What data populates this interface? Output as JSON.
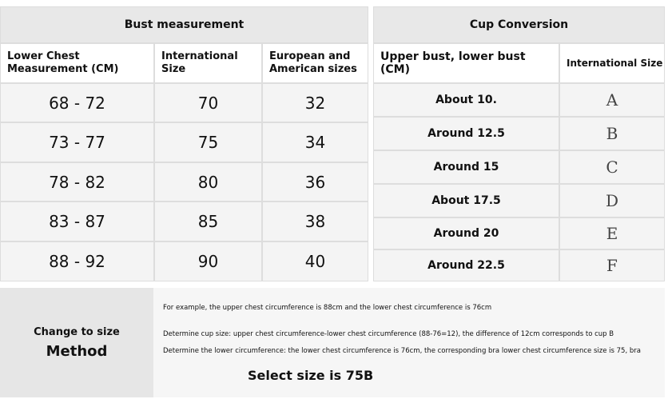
{
  "bust_table": {
    "title": "Bust measurement",
    "headers": [
      "Lower Chest Measurement (CM)",
      "International Size",
      "European and American sizes"
    ],
    "rows": [
      [
        "68 - 72",
        "70",
        "32"
      ],
      [
        "73 - 77",
        "75",
        "34"
      ],
      [
        "78 - 82",
        "80",
        "36"
      ],
      [
        "83 - 87",
        "85",
        "38"
      ],
      [
        "88 - 92",
        "90",
        "40"
      ]
    ]
  },
  "cup_table": {
    "title": "Cup Conversion",
    "headers": [
      "Upper bust, lower bust (CM)",
      "International Size"
    ],
    "rows": [
      [
        "About 10.",
        "A"
      ],
      [
        "Around 12.5",
        "B"
      ],
      [
        "Around 15",
        "C"
      ],
      [
        "About 17.5",
        "D"
      ],
      [
        "Around 20",
        "E"
      ],
      [
        "Around 22.5",
        "F"
      ]
    ]
  },
  "method": {
    "label": [
      "Change to size",
      "Method"
    ],
    "notes": [
      "For example, the upper chest circumference is 88cm and the lower chest circumference is 76cm",
      "Determine cup size: upper chest circumference-lower chest circumference (88-76=12), the difference of 12cm corresponds to cup B",
      "Determine the lower circumference: the lower chest circumference is 76cm, the corresponding bra lower chest circumference size is 75, bra"
    ],
    "result": "Select size is 75B"
  }
}
